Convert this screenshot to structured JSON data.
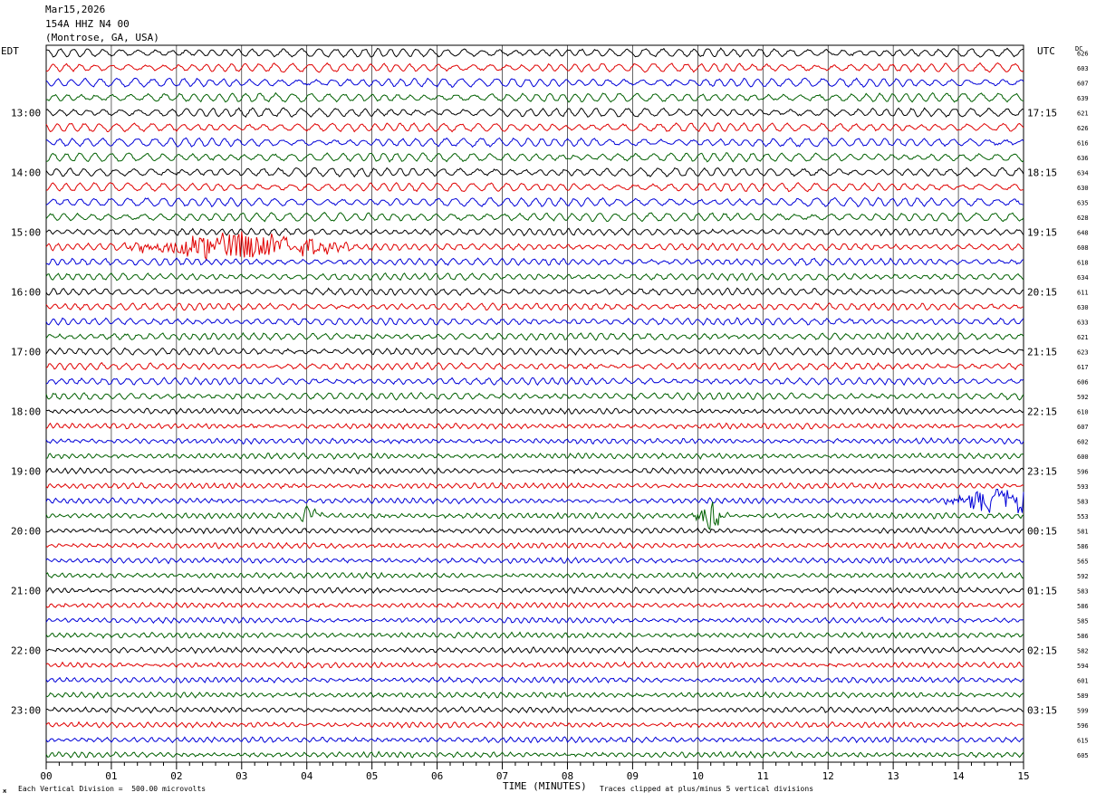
{
  "header": {
    "date": "Mar15,2026",
    "station": "154A HHZ N4 00",
    "location": "(Montrose, GA, USA)"
  },
  "left_tz": "EDT",
  "right_tz": "UTC",
  "dc_header": "DC",
  "corner_mark": "ж",
  "footer": {
    "scale_note": "Each Vertical Division =  500.00 microvolts",
    "clip_note": "Traces clipped at plus/minus 5 vertical divisions",
    "x_title": "TIME (MINUTES)"
  },
  "colors": {
    "trace_cycle": [
      "#000000",
      "#e00000",
      "#0000d8",
      "#006000"
    ],
    "grid": "#000000"
  },
  "chart_data": {
    "type": "line",
    "title": "Mar15,2026 154A HHZ N4 00 (Montrose, GA, USA)",
    "xlabel": "TIME (MINUTES)",
    "xlim": [
      0,
      15
    ],
    "x_ticks": [
      "00",
      "01",
      "02",
      "03",
      "04",
      "05",
      "06",
      "07",
      "08",
      "09",
      "10",
      "11",
      "12",
      "13",
      "14",
      "15"
    ],
    "row_minutes": 15,
    "left_hour_labels": [
      "13:00",
      "14:00",
      "15:00",
      "16:00",
      "17:00",
      "18:00",
      "19:00",
      "20:00",
      "21:00",
      "22:00",
      "23:00"
    ],
    "right_hour_labels": [
      "17:15",
      "18:15",
      "19:15",
      "20:15",
      "21:15",
      "22:15",
      "23:15",
      "00:15",
      "01:15",
      "02:15",
      "03:15"
    ],
    "dc_offsets": [
      626,
      603,
      607,
      639,
      621,
      626,
      616,
      636,
      634,
      630,
      635,
      628,
      648,
      608,
      618,
      634,
      611,
      630,
      633,
      621,
      623,
      617,
      606,
      592,
      610,
      607,
      602,
      600,
      596,
      593,
      583,
      553,
      581,
      586,
      565,
      592,
      583,
      586,
      585,
      586,
      582,
      594,
      601,
      589,
      599,
      596,
      615,
      605
    ],
    "units": "microvolts per vertical division: 500.00",
    "events": [
      {
        "row": 13,
        "start_min": 1.2,
        "end_min": 5.0,
        "peak_min": 3.0,
        "label": ""
      },
      {
        "row": 31,
        "start_min": 3.9,
        "end_min": 4.3,
        "peak_min": 4.05,
        "label": ""
      },
      {
        "row": 31,
        "start_min": 9.9,
        "end_min": 10.5,
        "peak_min": 10.2,
        "label": ""
      },
      {
        "row": 30,
        "start_min": 12.9,
        "end_min": 15.0,
        "peak_min": 14.8,
        "label": ""
      }
    ]
  }
}
